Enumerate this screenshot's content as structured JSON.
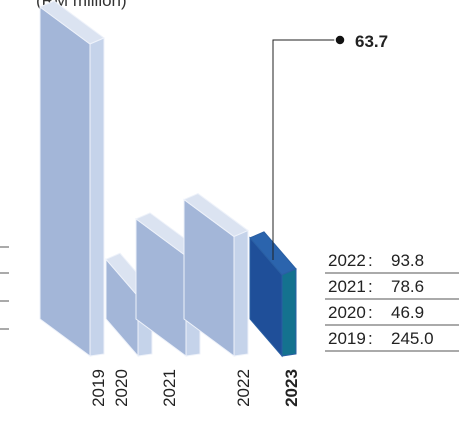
{
  "chart_data": {
    "type": "bar",
    "unit_label": "(RM million)",
    "categories": [
      "2019",
      "2020",
      "2021",
      "2022",
      "2023"
    ],
    "values": [
      245.0,
      46.9,
      78.6,
      93.8,
      63.7
    ],
    "highlight": {
      "category": "2023",
      "value_label": "63.7"
    },
    "legend_rows": [
      {
        "year": "2022",
        "sep": ":",
        "value": "93.8"
      },
      {
        "year": "2021",
        "sep": ":",
        "value": "78.6"
      },
      {
        "year": "2020",
        "sep": ":",
        "value": "46.9"
      },
      {
        "year": "2019",
        "sep": ":",
        "value": "245.0"
      }
    ],
    "colors": {
      "bar_front": "#a3b6d8",
      "bar_top": "#dbe3f1",
      "bar_side": "#c5d3ea",
      "bar_edge": "#eef2fa",
      "highlight_front": "#1f4f99",
      "highlight_top": "#2b64ad",
      "highlight_side": "#14728f",
      "rule": "#555555"
    }
  }
}
